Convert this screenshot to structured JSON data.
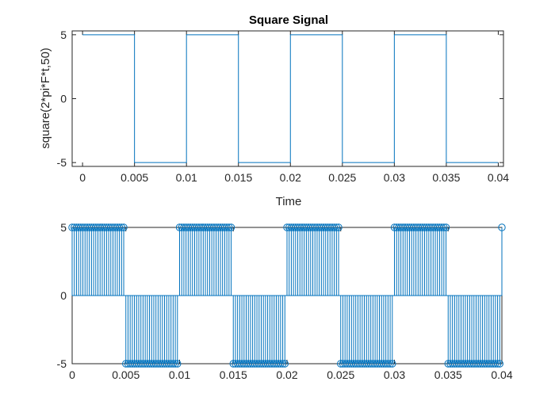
{
  "chart_data": [
    {
      "type": "line",
      "title": "Square Signal",
      "xlabel": "Time",
      "ylabel": "square(2*pi*F*t,50)",
      "xlim": [
        -0.001,
        0.0405
      ],
      "ylim": [
        -5.3,
        5.3
      ],
      "xticks": [
        0,
        0.005,
        0.01,
        0.015,
        0.02,
        0.025,
        0.03,
        0.035,
        0.04
      ],
      "xtick_labels": [
        "0",
        "0.005",
        "0.01",
        "0.015",
        "0.02",
        "0.025",
        "0.03",
        "0.035",
        "0.04"
      ],
      "yticks": [
        -5,
        0,
        5
      ],
      "ytick_labels": [
        "-5",
        "0",
        "5"
      ],
      "grid": false,
      "color": "#0072BD",
      "series": [
        {
          "x": [
            0,
            0.005,
            0.005,
            0.01,
            0.01,
            0.015,
            0.015,
            0.02,
            0.02,
            0.025,
            0.025,
            0.03,
            0.03,
            0.035,
            0.035,
            0.04
          ],
          "y": [
            5,
            5,
            -5,
            -5,
            5,
            5,
            -5,
            -5,
            5,
            5,
            -5,
            -5,
            5,
            5,
            -5,
            -5
          ]
        }
      ]
    },
    {
      "type": "stem",
      "title": "",
      "xlabel": "",
      "ylabel": "",
      "xlim": [
        0,
        0.04
      ],
      "ylim": [
        -5,
        5
      ],
      "xticks": [
        0,
        0.005,
        0.01,
        0.015,
        0.02,
        0.025,
        0.03,
        0.035,
        0.04
      ],
      "xtick_labels": [
        "0",
        "0.005",
        "0.01",
        "0.015",
        "0.02",
        "0.025",
        "0.03",
        "0.035",
        "0.04"
      ],
      "yticks": [
        -5,
        0,
        5
      ],
      "ytick_labels": [
        "-5",
        "0",
        "5"
      ],
      "grid": false,
      "color": "#0072BD",
      "marker": "circle",
      "sample_interval": 0.0002,
      "segments": [
        {
          "value": 5,
          "x_start": 0,
          "x_end": 0.005
        },
        {
          "value": -5,
          "x_start": 0.005,
          "x_end": 0.01
        },
        {
          "value": 5,
          "x_start": 0.01,
          "x_end": 0.015
        },
        {
          "value": -5,
          "x_start": 0.015,
          "x_end": 0.02
        },
        {
          "value": 5,
          "x_start": 0.02,
          "x_end": 0.025
        },
        {
          "value": -5,
          "x_start": 0.025,
          "x_end": 0.03
        },
        {
          "value": 5,
          "x_start": 0.03,
          "x_end": 0.035
        },
        {
          "value": -5,
          "x_start": 0.035,
          "x_end": 0.04
        }
      ],
      "final_point": {
        "x": 0.04,
        "y": 5
      }
    }
  ]
}
